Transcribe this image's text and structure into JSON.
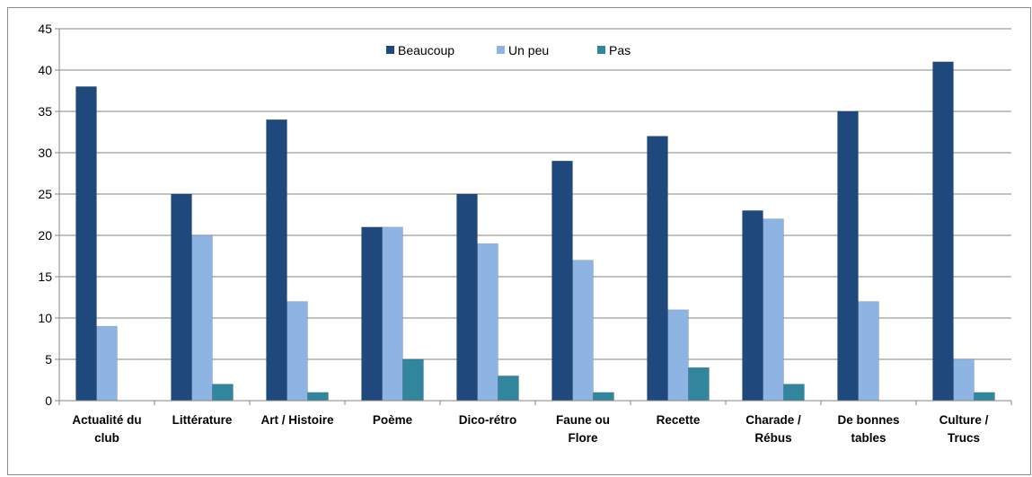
{
  "chart_data": {
    "type": "bar",
    "title": "",
    "xlabel": "",
    "ylabel": "",
    "ylim": [
      0,
      45
    ],
    "yticks": [
      0,
      5,
      10,
      15,
      20,
      25,
      30,
      35,
      40,
      45
    ],
    "grid": true,
    "legend_position": "top-center",
    "categories": [
      [
        "Actualité du",
        "club"
      ],
      [
        "Littérature"
      ],
      [
        "Art / Histoire"
      ],
      [
        "Poème"
      ],
      [
        "Dico-rétro"
      ],
      [
        "Faune ou",
        "Flore"
      ],
      [
        "Recette"
      ],
      [
        "Charade /",
        "Rébus"
      ],
      [
        "De bonnes",
        "tables"
      ],
      [
        "Culture /",
        "Trucs"
      ]
    ],
    "series": [
      {
        "name": "Beaucoup",
        "color": "#1f497d",
        "values": [
          38,
          25,
          34,
          21,
          25,
          29,
          32,
          23,
          35,
          41
        ]
      },
      {
        "name": "Un peu",
        "color": "#8eb4e3",
        "values": [
          9,
          20,
          12,
          21,
          19,
          17,
          11,
          22,
          12,
          5
        ]
      },
      {
        "name": "Pas",
        "color": "#31859c",
        "values": [
          0,
          2,
          1,
          5,
          3,
          1,
          4,
          2,
          0,
          1
        ]
      }
    ]
  }
}
